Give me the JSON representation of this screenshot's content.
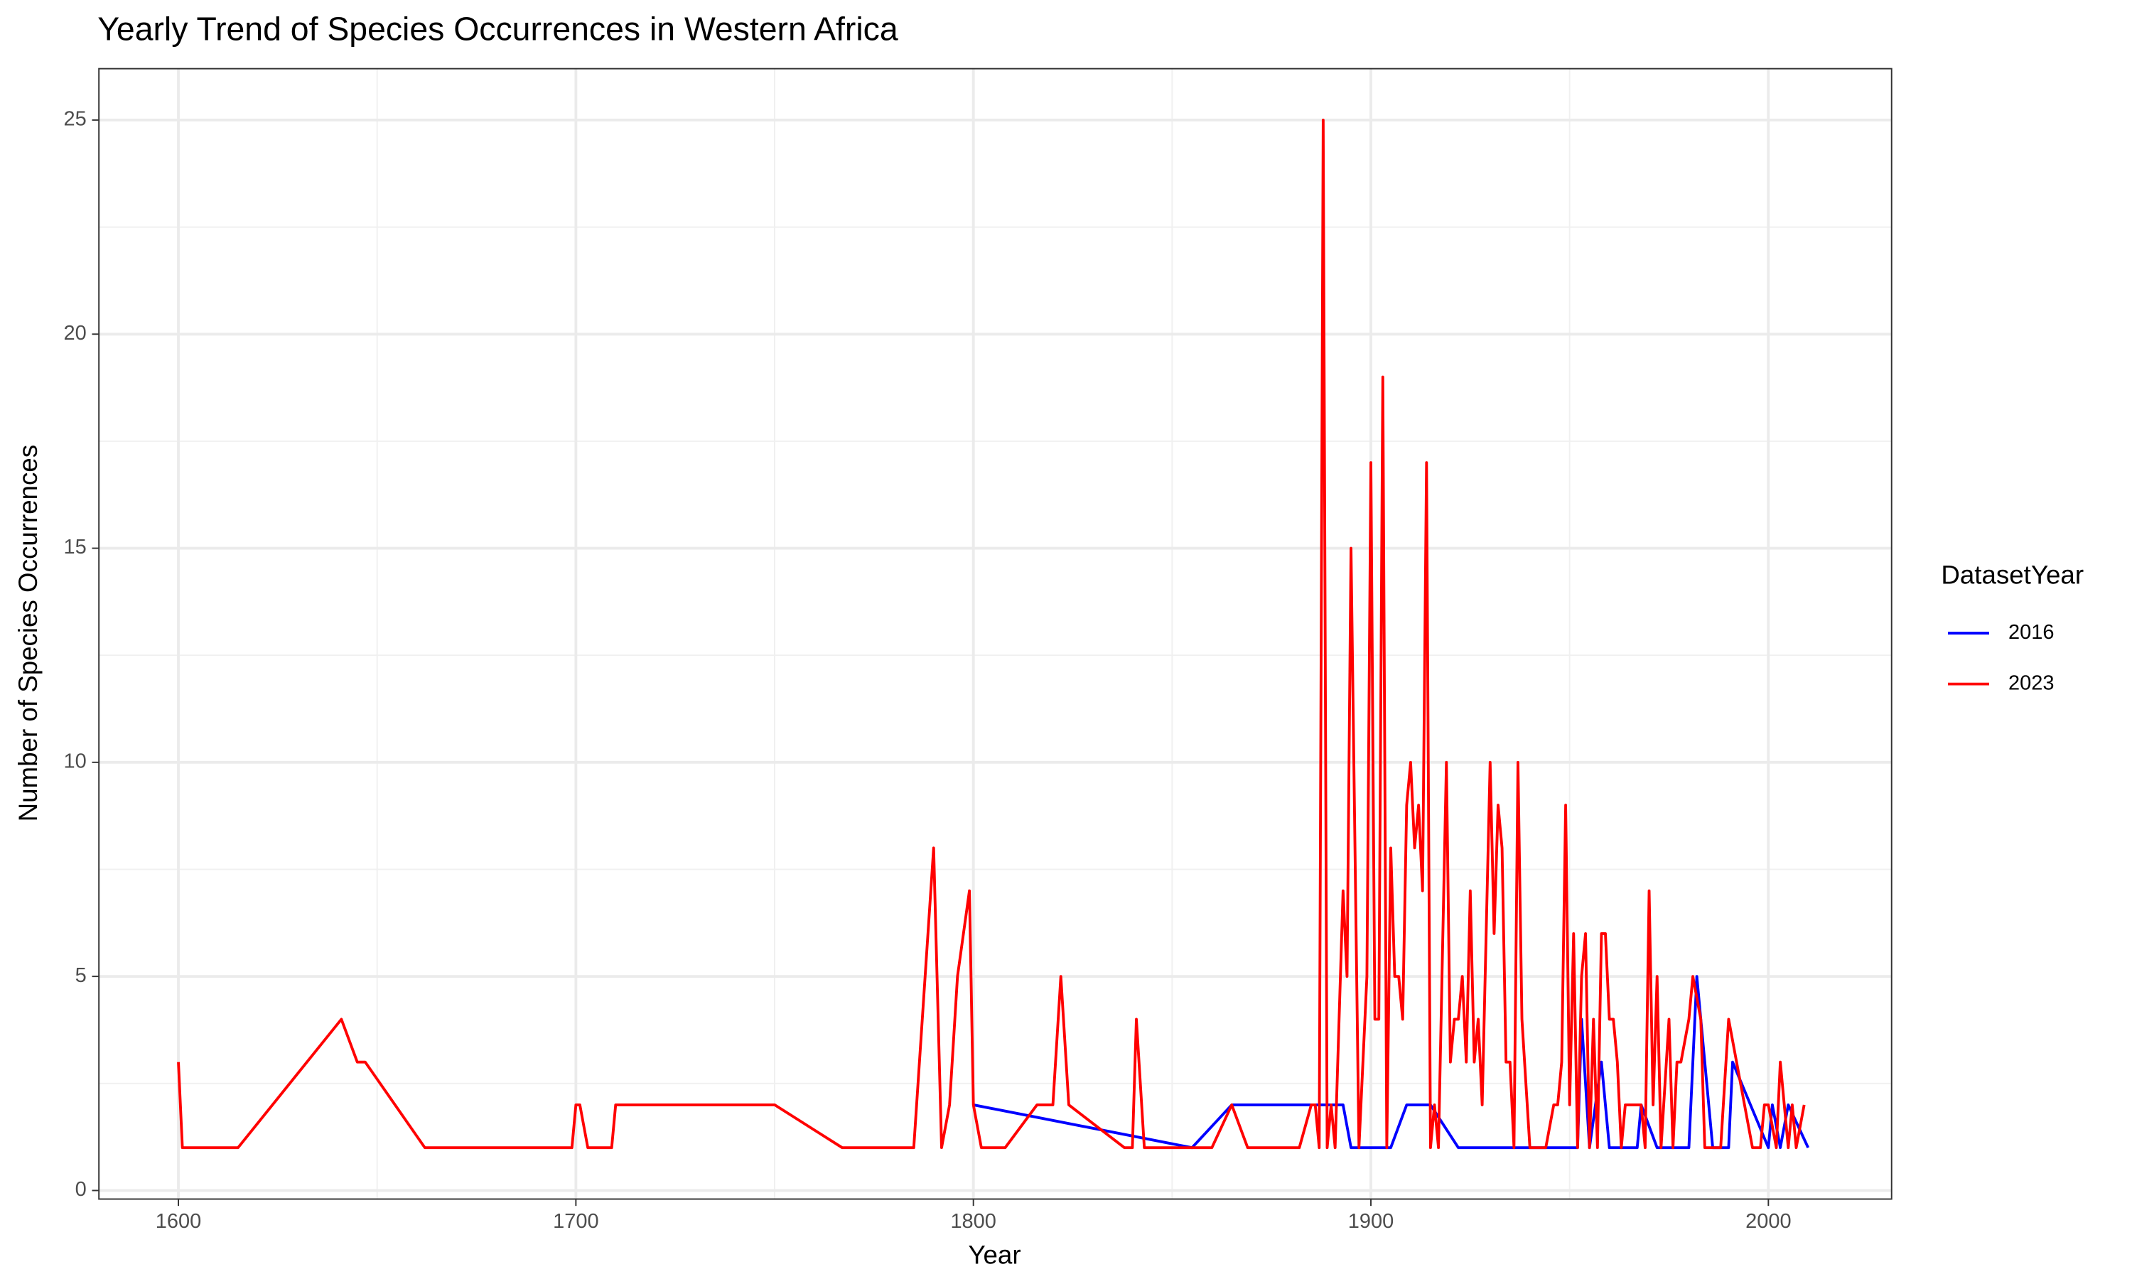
{
  "chart_data": {
    "type": "line",
    "title": "Yearly Trend of Species Occurrences in Western Africa",
    "x_label": "Year",
    "y_label": "Number of Species Occurrences",
    "legend_title": "DatasetYear",
    "legend_position": "right",
    "grid": true,
    "xlim": [
      1580,
      2031
    ],
    "ylim": [
      -0.2,
      26.2
    ],
    "xticks": [
      1600,
      1700,
      1800,
      1900,
      2000
    ],
    "yticks": [
      0,
      5,
      10,
      15,
      20,
      25
    ],
    "series": [
      {
        "name": "2016",
        "color": "#0000ff",
        "x": [
          1800,
          1855,
          1865,
          1893,
          1895,
          1905,
          1909,
          1915,
          1922,
          1952,
          1953,
          1955,
          1958,
          1960,
          1967,
          1968,
          1972,
          1980,
          1982,
          1985,
          1986,
          1990,
          1991,
          2000,
          2001,
          2003,
          2005,
          2010
        ],
        "values": [
          2,
          1,
          2,
          2,
          1,
          1,
          2,
          2,
          1,
          1,
          4,
          1,
          3,
          1,
          1,
          2,
          1,
          1,
          5,
          2,
          1,
          1,
          3,
          1,
          2,
          1,
          2,
          1
        ]
      },
      {
        "name": "2023",
        "color": "#ff0000",
        "x": [
          1600,
          1601,
          1615,
          1641,
          1645,
          1647,
          1662,
          1699,
          1700,
          1701,
          1703,
          1709,
          1710,
          1750,
          1767,
          1785,
          1790,
          1792,
          1794,
          1796,
          1799,
          1800,
          1802,
          1808,
          1816,
          1820,
          1822,
          1824,
          1838,
          1840,
          1841,
          1843,
          1850,
          1860,
          1865,
          1869,
          1882,
          1885,
          1886,
          1887,
          1888,
          1889,
          1890,
          1891,
          1893,
          1894,
          1895,
          1897,
          1899,
          1900,
          1901,
          1902,
          1903,
          1904,
          1905,
          1906,
          1907,
          1908,
          1909,
          1910,
          1911,
          1912,
          1913,
          1914,
          1915,
          1916,
          1917,
          1919,
          1920,
          1921,
          1922,
          1923,
          1924,
          1925,
          1926,
          1927,
          1928,
          1930,
          1931,
          1932,
          1933,
          1934,
          1935,
          1936,
          1937,
          1938,
          1940,
          1944,
          1946,
          1947,
          1948,
          1949,
          1950,
          1951,
          1952,
          1953,
          1954,
          1955,
          1956,
          1957,
          1958,
          1959,
          1960,
          1961,
          1962,
          1963,
          1964,
          1968,
          1969,
          1970,
          1971,
          1972,
          1973,
          1975,
          1976,
          1977,
          1978,
          1980,
          1981,
          1983,
          1984,
          1988,
          1990,
          1992,
          1994,
          1996,
          1998,
          1999,
          2000,
          2002,
          2003,
          2004,
          2005,
          2006,
          2007,
          2009
        ],
        "values": [
          3,
          1,
          1,
          4,
          3,
          3,
          1,
          1,
          2,
          2,
          1,
          1,
          2,
          2,
          1,
          1,
          8,
          1,
          2,
          5,
          7,
          2,
          1,
          1,
          2,
          2,
          5,
          2,
          1,
          1,
          4,
          1,
          1,
          1,
          2,
          1,
          1,
          2,
          2,
          1,
          25,
          1,
          2,
          1,
          7,
          5,
          15,
          1,
          5,
          17,
          4,
          4,
          19,
          1,
          8,
          5,
          5,
          4,
          9,
          10,
          8,
          9,
          7,
          17,
          1,
          2,
          1,
          10,
          3,
          4,
          4,
          5,
          3,
          7,
          3,
          4,
          2,
          10,
          6,
          9,
          8,
          3,
          3,
          1,
          10,
          4,
          1,
          1,
          2,
          2,
          3,
          9,
          2,
          6,
          1,
          5,
          6,
          1,
          4,
          1,
          6,
          6,
          4,
          4,
          3,
          1,
          2,
          2,
          1,
          7,
          2,
          5,
          1,
          4,
          1,
          3,
          3,
          4,
          5,
          4,
          1,
          1,
          4,
          3,
          2,
          1,
          1,
          2,
          2,
          1,
          3,
          2,
          1,
          2,
          1,
          2
        ]
      }
    ]
  }
}
